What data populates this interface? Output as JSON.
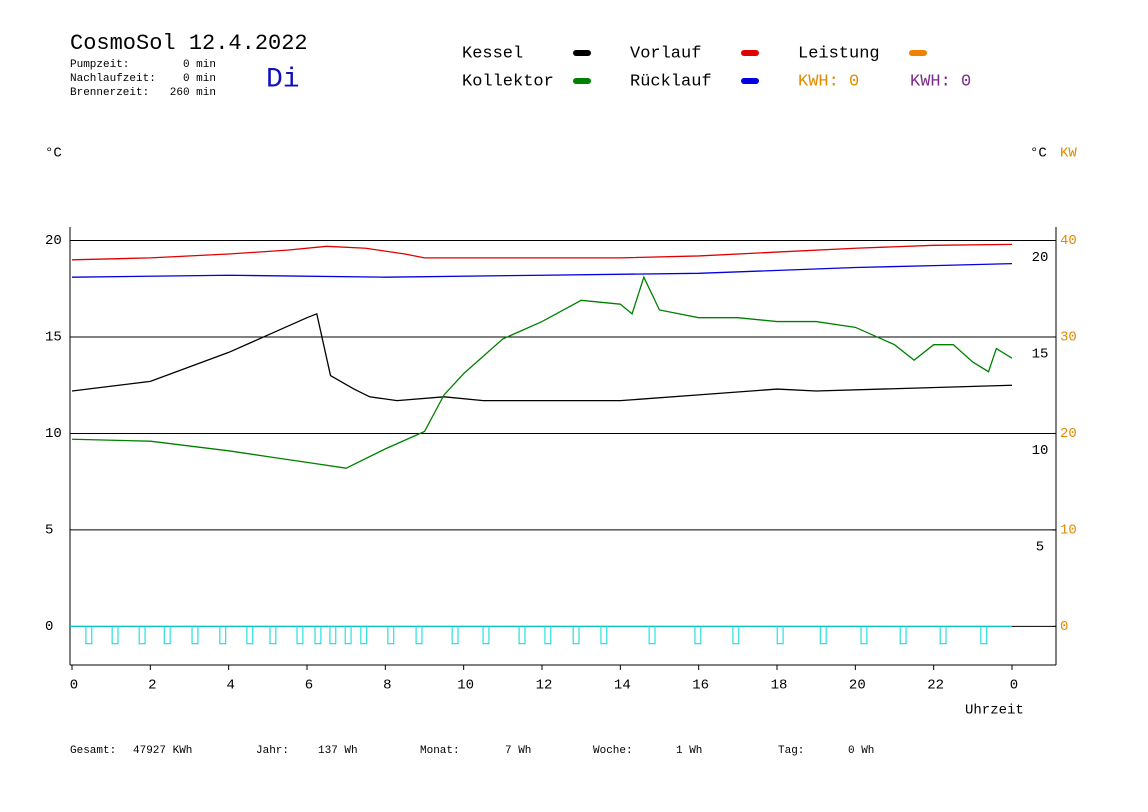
{
  "header": {
    "title": "CosmoSol 12.4.2022",
    "day": "Di",
    "stats": [
      {
        "label": "Pumpzeit:",
        "value": "0 min"
      },
      {
        "label": "Nachlaufzeit:",
        "value": "0 min"
      },
      {
        "label": "Brennerzeit:",
        "value": "260 min"
      }
    ]
  },
  "legend_extra": [
    {
      "text": "KWH: 0",
      "color": "#e08a00"
    },
    {
      "text": "KWH: 0",
      "color": "#7a2a8a"
    }
  ],
  "chart_data": {
    "type": "line",
    "ylabel": "°C",
    "y2label": "°C",
    "kwlabel": "KW",
    "xlabel": "Uhrzeit",
    "xlim": [
      0,
      24
    ],
    "xticks": [
      0,
      2,
      4,
      6,
      8,
      10,
      12,
      14,
      16,
      18,
      20,
      22,
      {
        "value": 24,
        "label": "0"
      }
    ],
    "ylim": [
      -2,
      20.7
    ],
    "yticks": [
      0,
      5,
      10,
      15,
      20
    ],
    "y2ticks": [
      5,
      10,
      15,
      20
    ],
    "kw_lim": [
      -4,
      41.4
    ],
    "kw_ticks": [
      0,
      10,
      20,
      30,
      40
    ],
    "kw_color": "#e08a00",
    "grid": true,
    "series": [
      {
        "name": "Kessel",
        "color": "#000000",
        "x": [
          0,
          2,
          4,
          5,
          6,
          6.25,
          6.6,
          7.2,
          7.6,
          8.3,
          9.5,
          10.5,
          14,
          16,
          18,
          19,
          24
        ],
        "values": [
          12.2,
          12.7,
          14.2,
          15.1,
          16.0,
          16.2,
          13.0,
          12.3,
          11.9,
          11.7,
          11.9,
          11.7,
          11.7,
          12.0,
          12.3,
          12.2,
          12.5
        ]
      },
      {
        "name": "Vorlauf",
        "color": "#e00000",
        "x": [
          0,
          2,
          4,
          5.5,
          6.5,
          7.5,
          8.5,
          9,
          14,
          16,
          18,
          20,
          22,
          24
        ],
        "values": [
          19.0,
          19.1,
          19.3,
          19.5,
          19.7,
          19.6,
          19.3,
          19.1,
          19.1,
          19.2,
          19.4,
          19.6,
          19.75,
          19.8
        ]
      },
      {
        "name": "Leistung",
        "color": "#f08000",
        "x": [],
        "values": []
      },
      {
        "name": "Kollektor",
        "color": "#008000",
        "x": [
          0,
          2,
          4,
          5,
          6,
          7,
          8,
          9,
          9.5,
          10,
          11,
          12,
          13,
          14,
          14.3,
          14.6,
          15,
          16,
          17,
          18,
          19,
          20,
          21,
          21.5,
          22,
          22.5,
          23,
          23.4,
          23.6,
          24
        ],
        "values": [
          9.7,
          9.6,
          9.1,
          8.8,
          8.5,
          8.2,
          9.2,
          10.1,
          12.0,
          13.1,
          14.9,
          15.8,
          16.9,
          16.7,
          16.2,
          18.1,
          16.4,
          16.0,
          16.0,
          15.8,
          15.8,
          15.5,
          14.6,
          13.8,
          14.6,
          14.6,
          13.7,
          13.2,
          14.4,
          13.9
        ]
      },
      {
        "name": "Rücklauf",
        "color": "#0000e0",
        "x": [
          0,
          4,
          8,
          12,
          16,
          20,
          22,
          24
        ],
        "values": [
          18.1,
          18.2,
          18.1,
          18.2,
          18.3,
          18.6,
          18.7,
          18.8
        ]
      }
    ],
    "pulse_color": "#00d8d8",
    "pulse_depth": -0.9,
    "pulse_width": 0.15,
    "pulse_hours": [
      0.43,
      1.1,
      1.79,
      2.43,
      3.14,
      3.85,
      4.54,
      5.13,
      5.82,
      6.28,
      6.66,
      7.05,
      7.45,
      8.14,
      8.86,
      9.78,
      10.57,
      11.49,
      12.15,
      12.87,
      13.58,
      14.81,
      15.98,
      16.95,
      18.08,
      19.18,
      20.22,
      21.22,
      22.24,
      23.28
    ]
  },
  "footer": [
    {
      "label": "Gesamt:",
      "value": "47927 KWh"
    },
    {
      "label": "Jahr:",
      "value": "137 Wh"
    },
    {
      "label": "Monat:",
      "value": "7 Wh"
    },
    {
      "label": "Woche:",
      "value": "1 Wh"
    },
    {
      "label": "Tag:",
      "value": "0 Wh"
    }
  ]
}
